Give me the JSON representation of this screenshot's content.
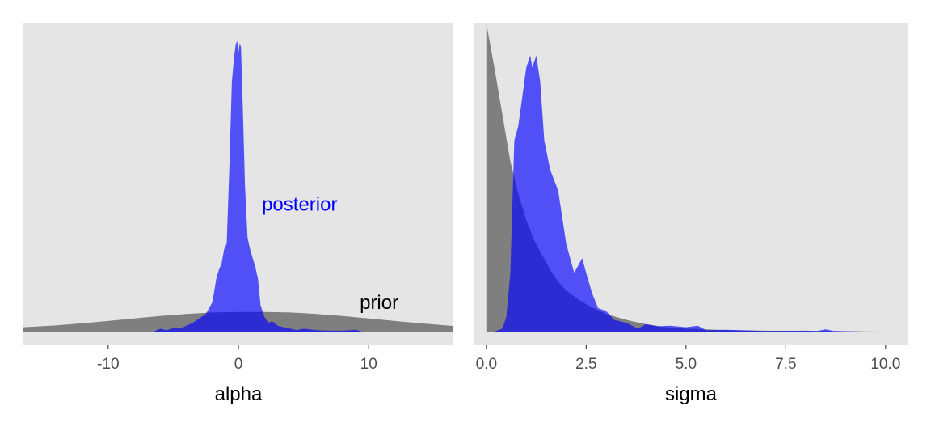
{
  "colors": {
    "panel_background": "#e5e5e5",
    "prior": "#7f7f7f",
    "posterior": "#0000ff",
    "posterior_opacity": 0.65,
    "tick_text": "#4d4d4d",
    "tick_mark": "#333333"
  },
  "chart_data": [
    {
      "type": "area",
      "xlabel": "alpha",
      "xlim": [
        -16.5,
        16.5
      ],
      "ylim": [
        0,
        1
      ],
      "xticks": [
        -10,
        0,
        10
      ],
      "xtick_labels": [
        "-10",
        "0",
        "10"
      ],
      "grid": false,
      "annotations": [
        {
          "text": "posterior",
          "x": 4.7,
          "y": 0.43,
          "color": "#0000ff"
        },
        {
          "text": "prior",
          "x": 10.8,
          "y": 0.095,
          "color": "#000000"
        }
      ],
      "series": [
        {
          "name": "prior",
          "fill": "#7f7f7f",
          "x": [
            -16.5,
            -14,
            -12,
            -10,
            -8,
            -6,
            -4,
            -2,
            0,
            2,
            4,
            6,
            8,
            10,
            12,
            14,
            16.5
          ],
          "y": [
            0.015,
            0.021,
            0.028,
            0.036,
            0.045,
            0.053,
            0.06,
            0.065,
            0.067,
            0.067,
            0.065,
            0.06,
            0.053,
            0.045,
            0.036,
            0.028,
            0.019
          ]
        },
        {
          "name": "posterior",
          "fill": "#0000ff",
          "x": [
            -6.5,
            -6,
            -5.5,
            -5,
            -4.5,
            -4,
            -3.5,
            -3,
            -2.5,
            -2,
            -1.7,
            -1.5,
            -1.3,
            -1.1,
            -0.9,
            -0.7,
            -0.5,
            -0.35,
            -0.2,
            -0.1,
            0,
            0.1,
            0.2,
            0.35,
            0.5,
            0.7,
            0.9,
            1.1,
            1.3,
            1.5,
            1.7,
            2,
            2.3,
            2.6,
            3,
            3.5,
            4,
            4.5,
            5,
            6,
            7,
            8,
            9,
            9.5
          ],
          "y": [
            0,
            0.01,
            0.005,
            0.012,
            0.01,
            0.02,
            0.03,
            0.045,
            0.06,
            0.1,
            0.18,
            0.21,
            0.23,
            0.28,
            0.3,
            0.55,
            0.85,
            0.93,
            0.98,
            0.99,
            0.95,
            0.98,
            0.97,
            0.75,
            0.5,
            0.32,
            0.28,
            0.25,
            0.22,
            0.18,
            0.09,
            0.05,
            0.03,
            0.035,
            0.02,
            0.015,
            0.01,
            0.005,
            0.01,
            0.005,
            0.003,
            0.003,
            0.006,
            0
          ]
        }
      ]
    },
    {
      "type": "area",
      "xlabel": "sigma",
      "xlim": [
        -0.3,
        10.55
      ],
      "ylim": [
        0,
        1
      ],
      "xticks": [
        0,
        2.5,
        5,
        7.5,
        10
      ],
      "xtick_labels": [
        "0.0",
        "2.5",
        "5.0",
        "7.5",
        "10.0"
      ],
      "grid": false,
      "series": [
        {
          "name": "prior",
          "fill": "#7f7f7f",
          "x": [
            0,
            0.2,
            0.4,
            0.6,
            0.8,
            1,
            1.2,
            1.4,
            1.6,
            1.8,
            2,
            2.3,
            2.6,
            3,
            3.5,
            4,
            4.5,
            5,
            6,
            7,
            8,
            9,
            10
          ],
          "y": [
            1.05,
            0.9,
            0.74,
            0.58,
            0.47,
            0.38,
            0.31,
            0.26,
            0.21,
            0.17,
            0.14,
            0.11,
            0.085,
            0.06,
            0.04,
            0.025,
            0.015,
            0.01,
            0.005,
            0.003,
            0.002,
            0.001,
            0
          ]
        },
        {
          "name": "posterior",
          "fill": "#0000ff",
          "x": [
            0.2,
            0.4,
            0.5,
            0.6,
            0.7,
            0.8,
            0.9,
            1,
            1.1,
            1.15,
            1.25,
            1.35,
            1.45,
            1.6,
            1.8,
            2,
            2.2,
            2.4,
            2.5,
            2.65,
            2.8,
            3,
            3.2,
            3.5,
            3.8,
            4,
            4.3,
            4.6,
            5,
            5.3,
            5.5,
            6,
            6.5,
            7,
            8,
            8.3,
            8.5,
            8.7,
            9.5
          ],
          "y": [
            0,
            0.01,
            0.05,
            0.2,
            0.65,
            0.7,
            0.8,
            0.9,
            0.94,
            0.9,
            0.94,
            0.85,
            0.65,
            0.55,
            0.48,
            0.3,
            0.2,
            0.25,
            0.2,
            0.13,
            0.08,
            0.07,
            0.04,
            0.03,
            0.01,
            0.025,
            0.018,
            0.02,
            0.015,
            0.02,
            0.005,
            0.006,
            0.004,
            0.002,
            0.003,
            0.002,
            0.008,
            0.002,
            0
          ]
        }
      ]
    }
  ]
}
